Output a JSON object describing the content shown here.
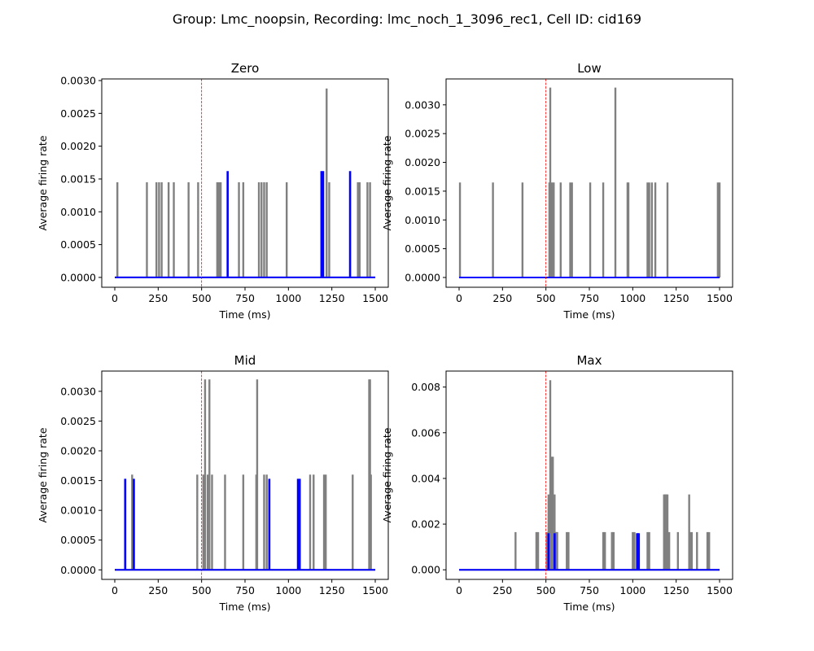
{
  "figure": {
    "title": "Group: Lmc_noopsin, Recording: lmc_noch_1_3096_rec1, Cell ID: cid169"
  },
  "colors": {
    "background": "#ffffff",
    "control": "#808080",
    "opto": "#0000ff",
    "stimulus_line": "#ff0000"
  },
  "chart_data": [
    {
      "type": "bar",
      "title": "Zero",
      "xlabel": "Time (ms)",
      "ylabel": "Average firing rate",
      "xlim": [
        -75,
        1575
      ],
      "ylim": [
        -0.00015,
        0.003025
      ],
      "xticks": [
        0,
        250,
        500,
        750,
        1000,
        1250,
        1500
      ],
      "yticks": [
        0.0,
        0.0005,
        0.001,
        0.0015,
        0.002,
        0.0025,
        0.003
      ],
      "ytick_labels": [
        "0.0000",
        "0.0005",
        "0.0010",
        "0.0015",
        "0.0020",
        "0.0025",
        "0.0030"
      ],
      "stimulus_onset": 500,
      "series": [
        {
          "role": "control",
          "x": [
            15,
            185,
            240,
            255,
            270,
            310,
            340,
            425,
            480,
            590,
            600,
            610,
            715,
            740,
            830,
            845,
            860,
            875,
            990,
            1220,
            1235,
            1400,
            1410,
            1455,
            1470
          ],
          "values": [
            0.00145,
            0.00145,
            0.00145,
            0.00145,
            0.00145,
            0.00145,
            0.00145,
            0.00145,
            0.00145,
            0.00145,
            0.00145,
            0.00145,
            0.00145,
            0.00145,
            0.00145,
            0.00145,
            0.00145,
            0.00145,
            0.00145,
            0.00288,
            0.00145,
            0.00145,
            0.00145,
            0.00145,
            0.00145
          ]
        },
        {
          "role": "opto",
          "x": [
            650,
            1190,
            1200,
            1355
          ],
          "values": [
            0.00162,
            0.00162,
            0.00162,
            0.00162
          ]
        }
      ]
    },
    {
      "type": "bar",
      "title": "Low",
      "xlabel": "Time (ms)",
      "ylabel": "Average firing rate",
      "xlim": [
        -75,
        1575
      ],
      "ylim": [
        -0.00017,
        0.00345
      ],
      "xticks": [
        0,
        250,
        500,
        750,
        1000,
        1250,
        1500
      ],
      "yticks": [
        0.0,
        0.0005,
        0.001,
        0.0015,
        0.002,
        0.0025,
        0.003
      ],
      "ytick_labels": [
        "0.0000",
        "0.0005",
        "0.0010",
        "0.0015",
        "0.0020",
        "0.0025",
        "0.0030"
      ],
      "stimulus_onset": 500,
      "series": [
        {
          "role": "control",
          "x": [
            5,
            195,
            365,
            520,
            525,
            535,
            545,
            585,
            640,
            650,
            755,
            830,
            900,
            970,
            975,
            1085,
            1095,
            1110,
            1130,
            1200,
            1490,
            1500
          ],
          "values": [
            0.00165,
            0.00165,
            0.00165,
            0.00165,
            0.0033,
            0.00165,
            0.00165,
            0.00165,
            0.00165,
            0.00165,
            0.00165,
            0.00165,
            0.0033,
            0.00165,
            0.00165,
            0.00165,
            0.00165,
            0.00165,
            0.00165,
            0.00165,
            0.00165,
            0.00165
          ]
        },
        {
          "role": "opto",
          "x": [],
          "values": []
        }
      ]
    },
    {
      "type": "bar",
      "title": "Mid",
      "xlabel": "Time (ms)",
      "ylabel": "Average firing rate",
      "xlim": [
        -75,
        1575
      ],
      "ylim": [
        -0.00016,
        0.00334
      ],
      "xticks": [
        0,
        250,
        500,
        750,
        1000,
        1250,
        1500
      ],
      "yticks": [
        0.0,
        0.0005,
        0.001,
        0.0015,
        0.002,
        0.0025,
        0.003
      ],
      "ytick_labels": [
        "0.0000",
        "0.0005",
        "0.0010",
        "0.0015",
        "0.0020",
        "0.0025",
        "0.0030"
      ],
      "stimulus_onset": 500,
      "series": [
        {
          "role": "control",
          "x": [
            100,
            475,
            510,
            520,
            535,
            545,
            560,
            635,
            740,
            815,
            820,
            860,
            875,
            1125,
            1145,
            1205,
            1215,
            1370,
            1465,
            1470,
            1475
          ],
          "values": [
            0.0016,
            0.0016,
            0.0016,
            0.0032,
            0.0016,
            0.0032,
            0.0016,
            0.0016,
            0.0016,
            0.0016,
            0.0032,
            0.0016,
            0.0016,
            0.0016,
            0.0016,
            0.0016,
            0.0016,
            0.0016,
            0.0032,
            0.0032,
            0.0016
          ]
        },
        {
          "role": "opto",
          "x": [
            60,
            110,
            890,
            1055,
            1065
          ],
          "values": [
            0.00153,
            0.00153,
            0.00153,
            0.00153,
            0.00153
          ]
        }
      ]
    },
    {
      "type": "bar",
      "title": "Max",
      "xlabel": "Time (ms)",
      "ylabel": "Average firing rate",
      "xlim": [
        -75,
        1575
      ],
      "ylim": [
        -0.00042,
        0.0087
      ],
      "xticks": [
        0,
        250,
        500,
        750,
        1000,
        1250,
        1500
      ],
      "yticks": [
        0.0,
        0.002,
        0.004,
        0.006,
        0.008
      ],
      "ytick_labels": [
        "0.000",
        "0.002",
        "0.004",
        "0.006",
        "0.008"
      ],
      "stimulus_onset": 500,
      "series": [
        {
          "role": "control",
          "x": [
            325,
            445,
            455,
            505,
            515,
            525,
            530,
            535,
            540,
            545,
            550,
            555,
            560,
            565,
            620,
            630,
            830,
            840,
            880,
            890,
            1000,
            1010,
            1085,
            1095,
            1180,
            1185,
            1190,
            1195,
            1200,
            1210,
            1260,
            1325,
            1330,
            1340,
            1370,
            1430,
            1440
          ],
          "values": [
            0.00165,
            0.00165,
            0.00165,
            0.00165,
            0.0033,
            0.0083,
            0.00495,
            0.0033,
            0.00495,
            0.00165,
            0.0033,
            0.00165,
            0.00165,
            0.00165,
            0.00165,
            0.00165,
            0.00165,
            0.00165,
            0.00165,
            0.00165,
            0.00165,
            0.00165,
            0.00165,
            0.00165,
            0.0033,
            0.0033,
            0.0033,
            0.0033,
            0.0033,
            0.00165,
            0.00165,
            0.0033,
            0.00165,
            0.00165,
            0.00165,
            0.00165,
            0.00165
          ]
        },
        {
          "role": "opto",
          "x": [
            515,
            550,
            1025,
            1030,
            1035
          ],
          "values": [
            0.0016,
            0.0016,
            0.0016,
            0.0016,
            0.0016
          ]
        }
      ]
    }
  ]
}
